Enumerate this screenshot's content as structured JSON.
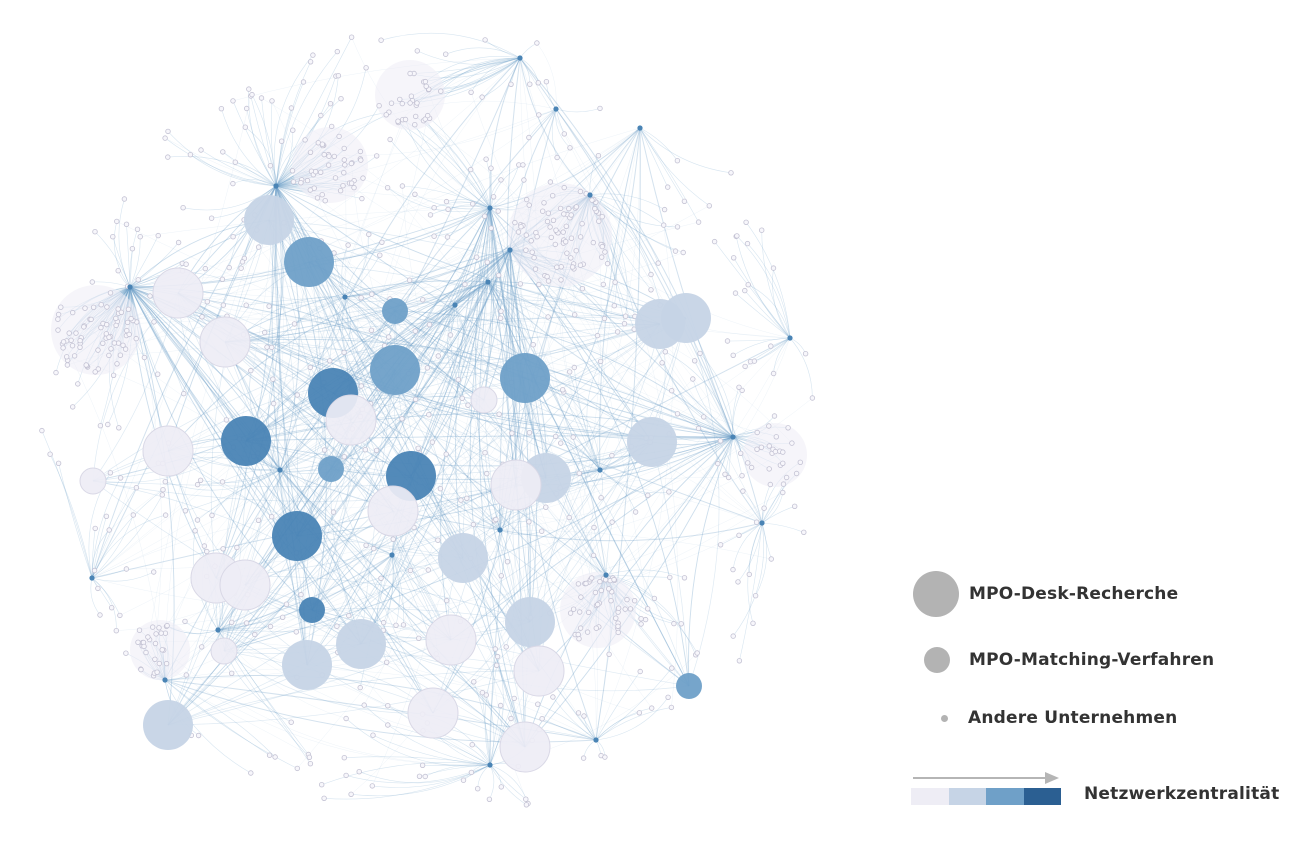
{
  "legend": {
    "size_items": [
      {
        "label": "MPO-Desk-Recherche",
        "icon": "large-circle-icon"
      },
      {
        "label": "MPO-Matching-Verfahren",
        "icon": "medium-circle-icon"
      },
      {
        "label": "Andere Unternehmen",
        "icon": "small-circle-icon"
      }
    ],
    "centrality_label": "Netzwerkzentralität",
    "centrality_colors": [
      "#eeedf5",
      "#c6d4e6",
      "#6fa0c8",
      "#2b5f92"
    ],
    "arrow_color": "#b5b5b5"
  },
  "network": {
    "colors": {
      "level_1": "#eeedf5",
      "level_2": "#c6d4e6",
      "level_3": "#6fa0c8",
      "level_4": "#4a84b5",
      "edge": "#6fa0c8",
      "small_node_fill": "#f7f6fb",
      "small_node_stroke": "#c3c2d3",
      "hub_node": "#4a84b5"
    },
    "nodes": [
      {
        "category": "desk",
        "centrality": 2
      },
      {
        "category": "desk",
        "centrality": 1
      },
      {
        "category": "desk",
        "centrality": 1
      },
      {
        "category": "desk",
        "centrality": 3
      },
      {
        "category": "desk",
        "centrality": 4
      },
      {
        "category": "desk",
        "centrality": 3
      },
      {
        "category": "desk",
        "centrality": 1
      },
      {
        "category": "desk",
        "centrality": 4
      },
      {
        "category": "desk",
        "centrality": 4
      },
      {
        "category": "desk",
        "centrality": 1
      },
      {
        "category": "desk",
        "centrality": 1
      },
      {
        "category": "desk",
        "centrality": 2
      },
      {
        "category": "desk",
        "centrality": 1
      },
      {
        "category": "desk",
        "centrality": 4
      },
      {
        "category": "desk",
        "centrality": 2
      },
      {
        "category": "desk",
        "centrality": 2
      },
      {
        "category": "desk",
        "centrality": 2
      },
      {
        "category": "desk",
        "centrality": 1
      },
      {
        "category": "desk",
        "centrality": 1
      },
      {
        "category": "desk",
        "centrality": 2
      },
      {
        "category": "desk",
        "centrality": 2
      },
      {
        "category": "desk",
        "centrality": 1
      },
      {
        "category": "desk",
        "centrality": 2
      },
      {
        "category": "desk",
        "centrality": 1
      },
      {
        "category": "desk",
        "centrality": 2
      },
      {
        "category": "desk",
        "centrality": 1
      },
      {
        "category": "desk",
        "centrality": 2
      },
      {
        "category": "desk",
        "centrality": 3
      },
      {
        "category": "desk",
        "centrality": 1
      },
      {
        "category": "matching",
        "centrality": 3
      },
      {
        "category": "matching",
        "centrality": 3
      },
      {
        "category": "matching",
        "centrality": 4
      },
      {
        "category": "matching",
        "centrality": 1
      },
      {
        "category": "matching",
        "centrality": 1
      },
      {
        "category": "matching",
        "centrality": 1
      },
      {
        "category": "matching",
        "centrality": 3
      }
    ]
  }
}
